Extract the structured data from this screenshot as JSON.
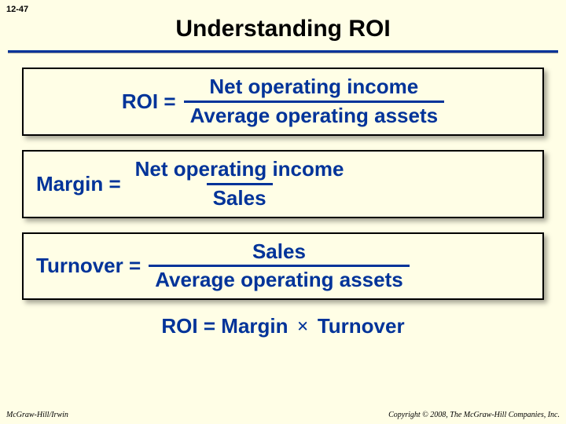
{
  "slide_number": "12-47",
  "title": "Understanding ROI",
  "colors": {
    "background": "#fffee6",
    "text_formula": "#003399",
    "rule": "#003399",
    "box_border": "#000000"
  },
  "formulas": [
    {
      "lhs": "ROI",
      "numerator": "Net operating income",
      "denominator": "Average operating assets"
    },
    {
      "lhs": "Margin",
      "numerator": "Net operating income",
      "denominator": "Sales"
    },
    {
      "lhs": "Turnover",
      "numerator": "Sales",
      "denominator": "Average operating assets"
    }
  ],
  "final": {
    "lhs": "ROI",
    "rhs_left": "Margin",
    "operator": "×",
    "rhs_right": "Turnover"
  },
  "footer": {
    "left": "McGraw-Hill/Irwin",
    "right": "Copyright © 2008, The McGraw-Hill Companies, Inc."
  }
}
